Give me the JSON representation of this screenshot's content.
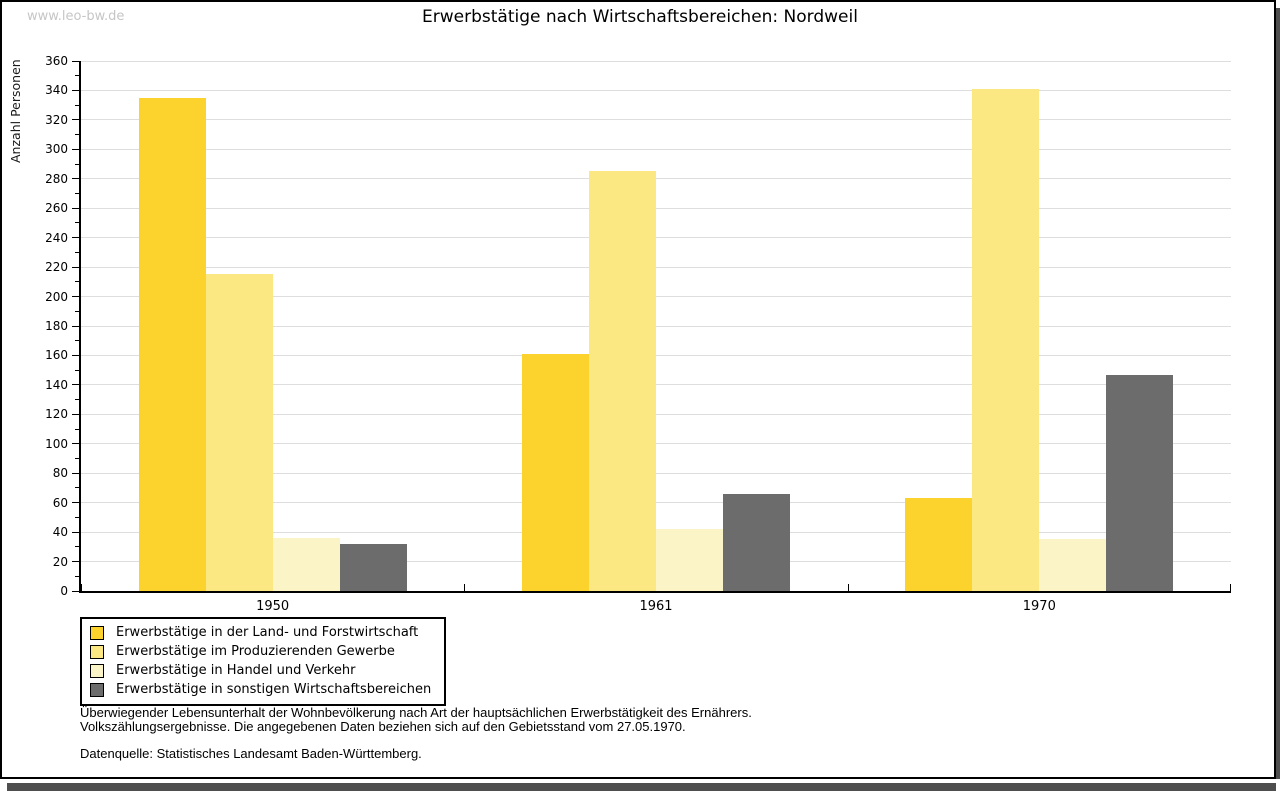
{
  "watermark": "www.leo-bw.de",
  "title": "Erwerbstätige nach Wirtschaftsbereichen: Nordweil",
  "chart_data": {
    "type": "bar",
    "title": "Erwerbstätige nach Wirtschaftsbereichen: Nordweil",
    "xlabel": "",
    "ylabel": "Anzahl Personen",
    "ylim": [
      0,
      360
    ],
    "ytick_major": 20,
    "ytick_minor": 10,
    "grid": true,
    "legend_position": "bottom-left",
    "categories": [
      "1950",
      "1961",
      "1970"
    ],
    "series": [
      {
        "name": "Erwerbstätige in der Land- und Forstwirtschaft",
        "color": "#fcd32d",
        "values": [
          335,
          161,
          63
        ]
      },
      {
        "name": "Erwerbstätige im Produzierenden Gewerbe",
        "color": "#fce883",
        "values": [
          215,
          285,
          341
        ]
      },
      {
        "name": "Erwerbstätige in Handel und Verkehr",
        "color": "#fbf4c6",
        "values": [
          36,
          42,
          35
        ]
      },
      {
        "name": "Erwerbstätige in sonstigen Wirtschaftsbereichen",
        "color": "#6c6c6c",
        "values": [
          32,
          66,
          147
        ]
      }
    ]
  },
  "footer": {
    "line1": "Überwiegender Lebensunterhalt der Wohnbevölkerung nach Art der hauptsächlichen Erwerbstätigkeit des Ernährers.",
    "line2": "Volkszählungsergebnisse. Die angegebenen Daten beziehen sich auf den Gebietsstand vom 27.05.1970.",
    "source": "Datenquelle: Statistisches Landesamt Baden-Württemberg."
  },
  "colors": {
    "axis": "#000000",
    "gridline": "#dedede",
    "watermark": "#c6c6c6",
    "shadow": "#4e4e4e"
  }
}
